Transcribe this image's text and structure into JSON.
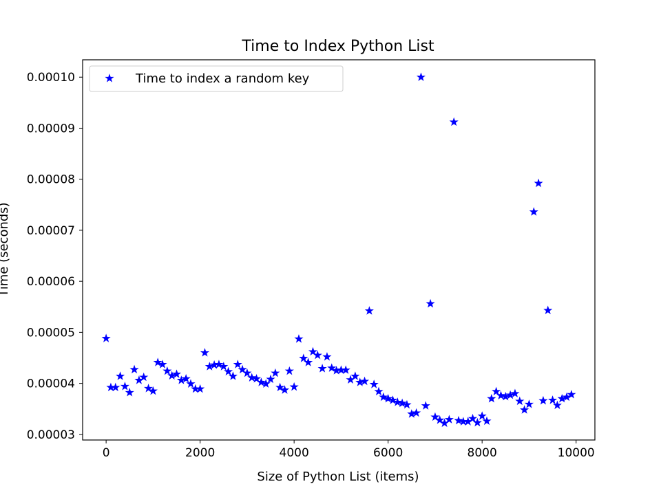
{
  "chart_data": {
    "type": "scatter",
    "title": "Time to Index Python List",
    "xlabel": "Size of Python List (items)",
    "ylabel": "Time (seconds)",
    "xlim": [
      -500,
      10400
    ],
    "ylim": [
      2.89e-05,
      0.0001034
    ],
    "x_ticks": [
      0,
      2000,
      4000,
      6000,
      8000,
      10000
    ],
    "x_tick_labels": [
      "0",
      "2000",
      "4000",
      "6000",
      "8000",
      "10000"
    ],
    "y_ticks": [
      3e-05,
      4e-05,
      5e-05,
      6e-05,
      7e-05,
      8e-05,
      9e-05,
      0.0001
    ],
    "y_tick_labels": [
      "0.00003",
      "0.00004",
      "0.00005",
      "0.00006",
      "0.00007",
      "0.00008",
      "0.00009",
      "0.00010"
    ],
    "grid": false,
    "legend_position": "upper-left",
    "series": [
      {
        "name": "Time to index a random key",
        "marker": "star",
        "color": "#0000ff",
        "x": [
          0,
          100,
          200,
          300,
          400,
          500,
          600,
          700,
          800,
          900,
          1000,
          1100,
          1200,
          1300,
          1400,
          1500,
          1600,
          1700,
          1800,
          1900,
          2000,
          2100,
          2200,
          2300,
          2400,
          2500,
          2600,
          2700,
          2800,
          2900,
          3000,
          3100,
          3200,
          3300,
          3400,
          3500,
          3600,
          3700,
          3800,
          3900,
          4000,
          4100,
          4200,
          4300,
          4400,
          4500,
          4600,
          4700,
          4800,
          4900,
          5000,
          5100,
          5200,
          5300,
          5400,
          5500,
          5600,
          5700,
          5800,
          5900,
          6000,
          6100,
          6200,
          6300,
          6400,
          6500,
          6600,
          6700,
          6800,
          6900,
          7000,
          7100,
          7200,
          7300,
          7400,
          7500,
          7600,
          7700,
          7800,
          7900,
          8000,
          8100,
          8200,
          8300,
          8400,
          8500,
          8600,
          8700,
          8800,
          8900,
          9000,
          9100,
          9200,
          9300,
          9400,
          9500,
          9600,
          9700,
          9800,
          9900
        ],
        "y": [
          4.88e-05,
          3.92e-05,
          3.92e-05,
          4.14e-05,
          3.94e-05,
          3.82e-05,
          4.27e-05,
          4.06e-05,
          4.12e-05,
          3.9e-05,
          3.85e-05,
          4.41e-05,
          4.37e-05,
          4.24e-05,
          4.15e-05,
          4.18e-05,
          4.06e-05,
          4.09e-05,
          3.99e-05,
          3.89e-05,
          3.89e-05,
          4.6e-05,
          4.33e-05,
          4.36e-05,
          4.37e-05,
          4.33e-05,
          4.23e-05,
          4.14e-05,
          4.37e-05,
          4.27e-05,
          4.2e-05,
          4.11e-05,
          4.09e-05,
          4.02e-05,
          3.99e-05,
          4.08e-05,
          4.2e-05,
          3.92e-05,
          3.87e-05,
          4.24e-05,
          3.93e-05,
          4.87e-05,
          4.49e-05,
          4.41e-05,
          4.62e-05,
          4.55e-05,
          4.29e-05,
          4.52e-05,
          4.3e-05,
          4.25e-05,
          4.26e-05,
          4.26e-05,
          4.07e-05,
          4.14e-05,
          4.02e-05,
          4.04e-05,
          5.42e-05,
          3.98e-05,
          3.84e-05,
          3.73e-05,
          3.7e-05,
          3.67e-05,
          3.63e-05,
          3.61e-05,
          3.58e-05,
          3.4e-05,
          3.42e-05,
          0.0001,
          3.56e-05,
          5.56e-05,
          3.34e-05,
          3.28e-05,
          3.22e-05,
          3.29e-05,
          9.12e-05,
          3.27e-05,
          3.25e-05,
          3.25e-05,
          3.31e-05,
          3.23e-05,
          3.36e-05,
          3.26e-05,
          3.7e-05,
          3.84e-05,
          3.76e-05,
          3.74e-05,
          3.77e-05,
          3.8e-05,
          3.65e-05,
          3.48e-05,
          3.59e-05,
          7.36e-05,
          7.92e-05,
          3.66e-05,
          5.43e-05,
          3.67e-05,
          3.57e-05,
          3.7e-05,
          3.73e-05,
          3.78e-05
        ]
      }
    ]
  }
}
